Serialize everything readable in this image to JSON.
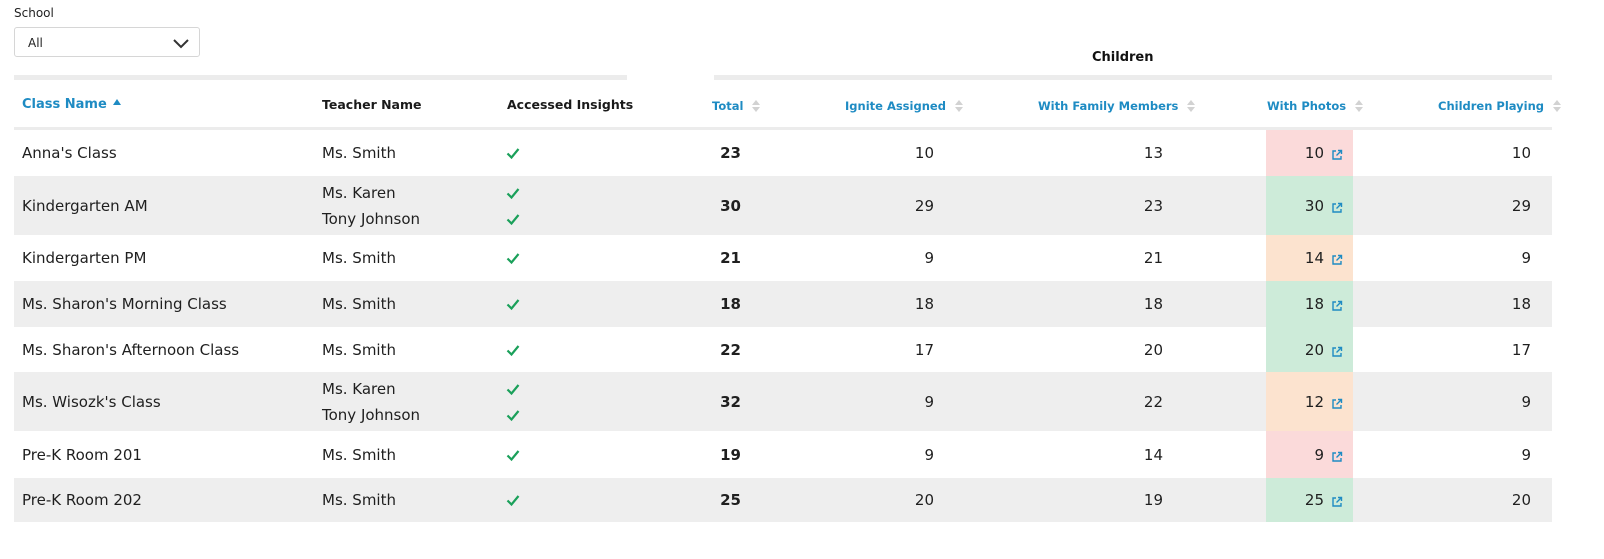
{
  "filter": {
    "label": "School",
    "selected": "All"
  },
  "group_header": "Children",
  "columns": {
    "class_name": "Class Name",
    "teacher_name": "Teacher Name",
    "accessed_insights": "Accessed Insights",
    "total": "Total",
    "ignite_assigned": "Ignite Assigned",
    "with_family_members": "With Family Members",
    "with_photos": "With Photos",
    "children_playing": "Children Playing"
  },
  "colors": {
    "accent": "#1e8bc3",
    "check": "#1aa05a",
    "photos_low": "#fbdada",
    "photos_mid": "#fce3cf",
    "photos_high": "#cdebd9",
    "row_shade": "#eeeeee"
  },
  "rows": [
    {
      "class_name": "Anna's Class",
      "teachers": [
        "Ms. Smith"
      ],
      "total": "23",
      "ignite_assigned": "10",
      "with_family_members": "13",
      "with_photos": "10",
      "photos_level": "red",
      "children_playing": "10"
    },
    {
      "class_name": "Kindergarten AM",
      "teachers": [
        "Ms. Karen",
        "Tony Johnson"
      ],
      "total": "30",
      "ignite_assigned": "29",
      "with_family_members": "23",
      "with_photos": "30",
      "photos_level": "green",
      "children_playing": "29"
    },
    {
      "class_name": "Kindergarten PM",
      "teachers": [
        "Ms. Smith"
      ],
      "total": "21",
      "ignite_assigned": "9",
      "with_family_members": "21",
      "with_photos": "14",
      "photos_level": "peach",
      "children_playing": "9"
    },
    {
      "class_name": "Ms. Sharon's Morning Class",
      "teachers": [
        "Ms. Smith"
      ],
      "total": "18",
      "ignite_assigned": "18",
      "with_family_members": "18",
      "with_photos": "18",
      "photos_level": "green",
      "children_playing": "18"
    },
    {
      "class_name": "Ms. Sharon's Afternoon Class",
      "teachers": [
        "Ms. Smith"
      ],
      "total": "22",
      "ignite_assigned": "17",
      "with_family_members": "20",
      "with_photos": "20",
      "photos_level": "green",
      "children_playing": "17"
    },
    {
      "class_name": "Ms. Wisozk's Class",
      "teachers": [
        "Ms. Karen",
        "Tony Johnson"
      ],
      "total": "32",
      "ignite_assigned": "9",
      "with_family_members": "22",
      "with_photos": "12",
      "photos_level": "peach",
      "children_playing": "9"
    },
    {
      "class_name": "Pre-K Room 201",
      "teachers": [
        "Ms. Smith"
      ],
      "total": "19",
      "ignite_assigned": "9",
      "with_family_members": "14",
      "with_photos": "9",
      "photos_level": "red",
      "children_playing": "9"
    },
    {
      "class_name": "Pre-K Room 202",
      "teachers": [
        "Ms. Smith"
      ],
      "total": "25",
      "ignite_assigned": "20",
      "with_family_members": "19",
      "with_photos": "25",
      "photos_level": "green",
      "children_playing": "20"
    }
  ]
}
